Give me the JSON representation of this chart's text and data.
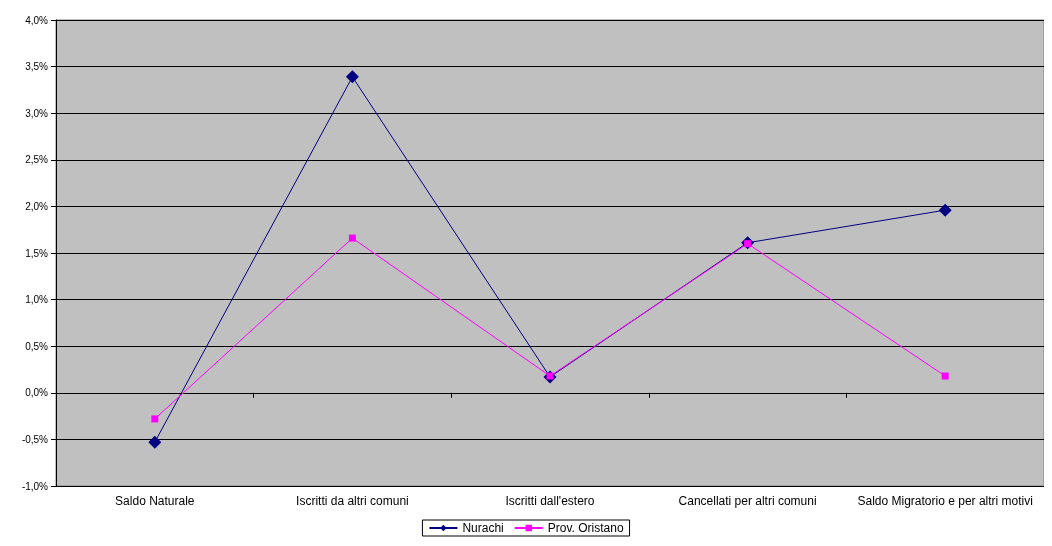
{
  "chart_data": {
    "type": "line",
    "categories": [
      "Saldo Naturale",
      "Iscritti da altri comuni",
      "Iscritti dall'estero",
      "Cancellati per altri comuni",
      "Saldo Migratorio e per altri motivi"
    ],
    "series": [
      {
        "name": "Nurachi",
        "color": "#000080",
        "marker": "diamond",
        "values": [
          -0.53,
          3.39,
          0.17,
          1.61,
          1.96
        ]
      },
      {
        "name": "Prov. Oristano",
        "color": "#ff00ff",
        "marker": "square",
        "values": [
          -0.28,
          1.66,
          0.18,
          1.6,
          0.18
        ]
      }
    ],
    "ylim": [
      -1,
      4
    ],
    "yticks": [
      {
        "value": -1,
        "label": "-1,0%"
      },
      {
        "value": -0.5,
        "label": "-0,5%"
      },
      {
        "value": 0,
        "label": "0,0%"
      },
      {
        "value": 0.5,
        "label": "0,5%"
      },
      {
        "value": 1,
        "label": "1,0%"
      },
      {
        "value": 1.5,
        "label": "1,5%"
      },
      {
        "value": 2,
        "label": "2,0%"
      },
      {
        "value": 2.5,
        "label": "2,5%"
      },
      {
        "value": 3,
        "label": "3,0%"
      },
      {
        "value": 3.5,
        "label": "3,5%"
      },
      {
        "value": 4,
        "label": "4,0%"
      }
    ],
    "grid": "y",
    "legend": "bottom",
    "line_style": "solid"
  }
}
